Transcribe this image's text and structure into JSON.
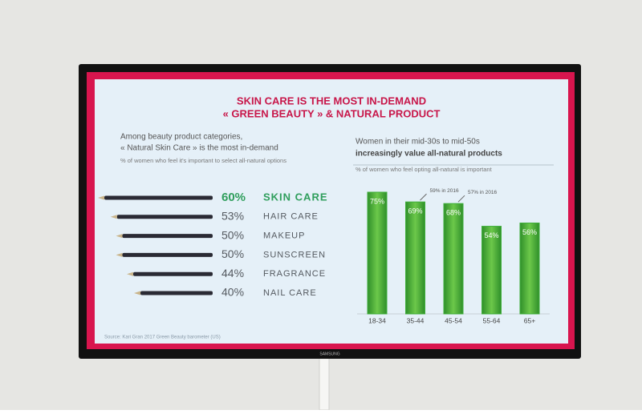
{
  "slide": {
    "title_line1": "SKIN CARE IS THE MOST IN-DEMAND",
    "title_line2": "« GREEN BEAUTY » & NATURAL PRODUCT",
    "source": "Source: Kari Gran 2017 Green Beauty barometer (US)",
    "brand": "SAMSUNG"
  },
  "chart_data": [
    {
      "type": "bar",
      "orientation": "horizontal",
      "title_line1": "Among beauty product categories,",
      "title_line2": "« Natural Skin Care » is the most in-demand",
      "subtitle": "% of women who feel it's important to select all-natural options",
      "categories": [
        "SKIN CARE",
        "HAIR CARE",
        "MAKEUP",
        "SUNSCREEN",
        "FRAGRANCE",
        "NAIL CARE"
      ],
      "values": [
        60,
        53,
        50,
        50,
        44,
        40
      ],
      "value_labels": [
        "60%",
        "53%",
        "50%",
        "50%",
        "44%",
        "40%"
      ],
      "color": "#2a2a34",
      "highlight_color": "#2f9e5c",
      "label_color": "#555a60"
    },
    {
      "type": "bar",
      "orientation": "vertical",
      "title_line1": "Women in their mid-30s to mid-50s",
      "title_line2": "increasingly value all-natural products",
      "subtitle": "% of women who feel opting all-natural is important",
      "categories": [
        "18-34",
        "35-44",
        "45-54",
        "55-64",
        "65+"
      ],
      "values": [
        75,
        69,
        68,
        54,
        56
      ],
      "value_labels": [
        "75%",
        "69%",
        "68%",
        "54%",
        "56%"
      ],
      "color": "#3fae3a",
      "annotations": [
        {
          "label": "59% in 2016",
          "value": 59,
          "category": "35-44"
        },
        {
          "label": "57% in 2016",
          "value": 57,
          "category": "45-54"
        }
      ]
    }
  ]
}
